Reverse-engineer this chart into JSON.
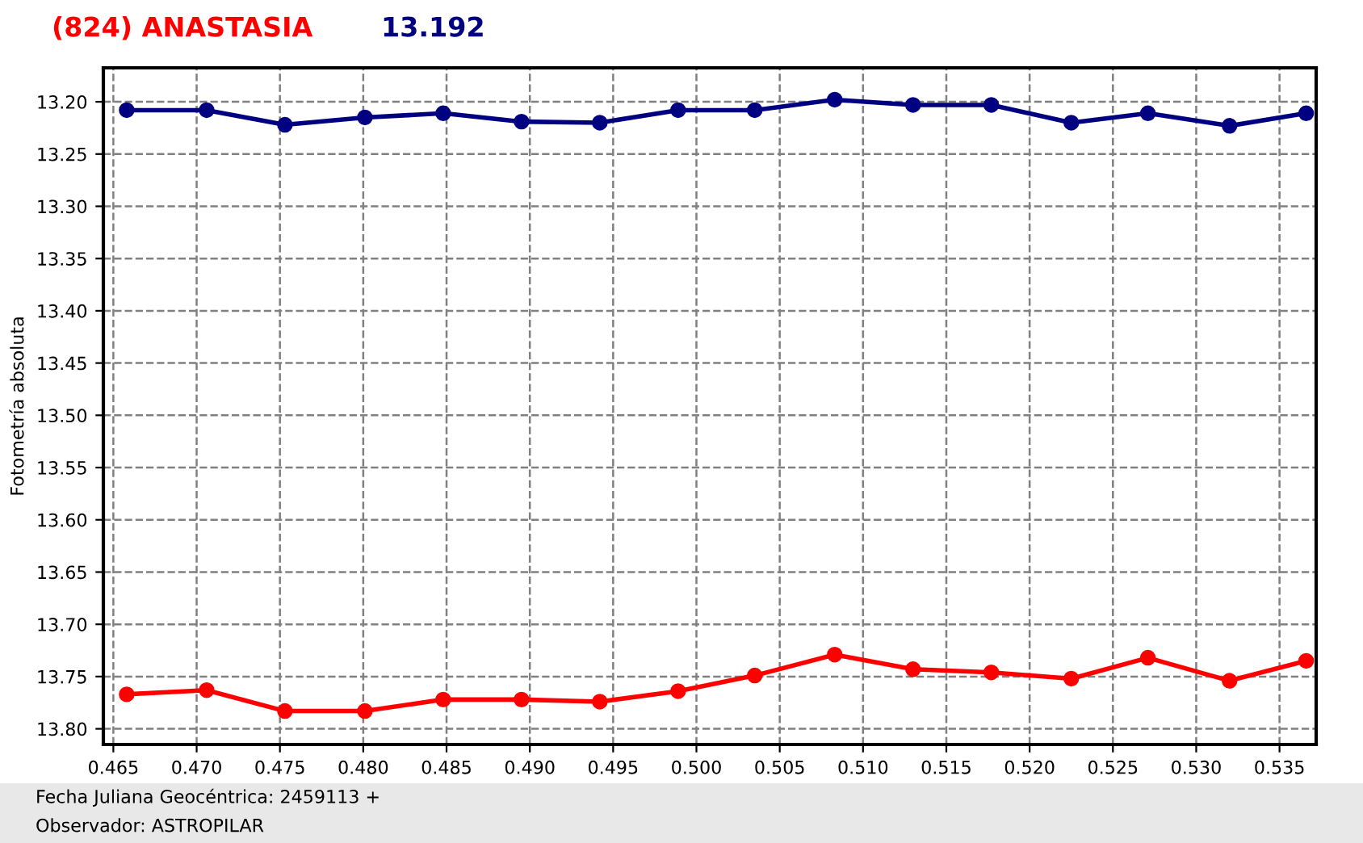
{
  "chart_data": {
    "type": "line",
    "title": "(824) ANASTASIA",
    "subtitle": "13.192",
    "ylabel": "Fotometría absoluta",
    "x": [
      0.4658,
      0.4706,
      0.4753,
      0.4801,
      0.4848,
      0.4895,
      0.4942,
      0.4989,
      0.5035,
      0.5083,
      0.513,
      0.5177,
      0.5225,
      0.5271,
      0.532,
      0.5366
    ],
    "series": [
      {
        "color": "#000080",
        "values": [
          13.208,
          13.208,
          13.222,
          13.215,
          13.211,
          13.219,
          13.22,
          13.208,
          13.208,
          13.198,
          13.203,
          13.203,
          13.22,
          13.211,
          13.223,
          13.211
        ]
      },
      {
        "color": "#ff0000",
        "values": [
          13.767,
          13.763,
          13.783,
          13.783,
          13.772,
          13.772,
          13.774,
          13.764,
          13.749,
          13.729,
          13.743,
          13.746,
          13.752,
          13.732,
          13.754,
          13.735
        ]
      }
    ],
    "xlim": [
      0.4644,
      0.5372
    ],
    "xticks": [
      {
        "value": 0.465,
        "label": "0.465"
      },
      {
        "value": 0.47,
        "label": "0.470"
      },
      {
        "value": 0.475,
        "label": "0.475"
      },
      {
        "value": 0.48,
        "label": "0.480"
      },
      {
        "value": 0.485,
        "label": "0.485"
      },
      {
        "value": 0.49,
        "label": "0.490"
      },
      {
        "value": 0.495,
        "label": "0.495"
      },
      {
        "value": 0.5,
        "label": "0.500"
      },
      {
        "value": 0.505,
        "label": "0.505"
      },
      {
        "value": 0.51,
        "label": "0.510"
      },
      {
        "value": 0.515,
        "label": "0.515"
      },
      {
        "value": 0.52,
        "label": "0.520"
      },
      {
        "value": 0.525,
        "label": "0.525"
      },
      {
        "value": 0.53,
        "label": "0.530"
      },
      {
        "value": 0.535,
        "label": "0.535"
      }
    ],
    "ylim": [
      13.815,
      13.1675
    ],
    "yticks": [
      {
        "value": 13.2,
        "label": "13.20"
      },
      {
        "value": 13.25,
        "label": "13.25"
      },
      {
        "value": 13.3,
        "label": "13.30"
      },
      {
        "value": 13.35,
        "label": "13.35"
      },
      {
        "value": 13.4,
        "label": "13.40"
      },
      {
        "value": 13.45,
        "label": "13.45"
      },
      {
        "value": 13.5,
        "label": "13.50"
      },
      {
        "value": 13.55,
        "label": "13.55"
      },
      {
        "value": 13.6,
        "label": "13.60"
      },
      {
        "value": 13.65,
        "label": "13.65"
      },
      {
        "value": 13.7,
        "label": "13.70"
      },
      {
        "value": 13.75,
        "label": "13.75"
      },
      {
        "value": 13.8,
        "label": "13.80"
      }
    ],
    "grid": true,
    "marker": "circle",
    "line_style": "solid",
    "annotations": [
      "Fecha Juliana Geocéntrica: 2459113 +",
      "Observador: ASTROPILAR"
    ]
  }
}
